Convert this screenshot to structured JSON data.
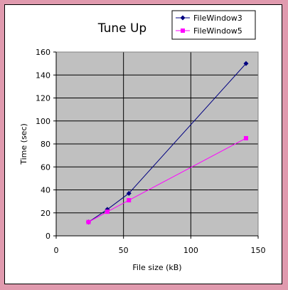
{
  "chart_data": {
    "type": "line",
    "title": "Tune Up",
    "xlabel": "File size (kB)",
    "ylabel": "Time (sec)",
    "xlim": [
      0,
      150
    ],
    "ylim": [
      0,
      160
    ],
    "xticks": [
      0,
      50,
      100,
      150
    ],
    "yticks": [
      0,
      20,
      40,
      60,
      80,
      100,
      120,
      140,
      160
    ],
    "grid": true,
    "legend": "top-right",
    "series": [
      {
        "name": "FileWindow3",
        "color": "#000080",
        "marker": "diamond",
        "x": [
          24,
          38,
          54,
          141
        ],
        "y": [
          12,
          23,
          37,
          150
        ]
      },
      {
        "name": "FileWindow5",
        "color": "#ff00ff",
        "marker": "square",
        "x": [
          24,
          38,
          54,
          141
        ],
        "y": [
          12,
          21,
          31,
          85
        ]
      }
    ]
  }
}
